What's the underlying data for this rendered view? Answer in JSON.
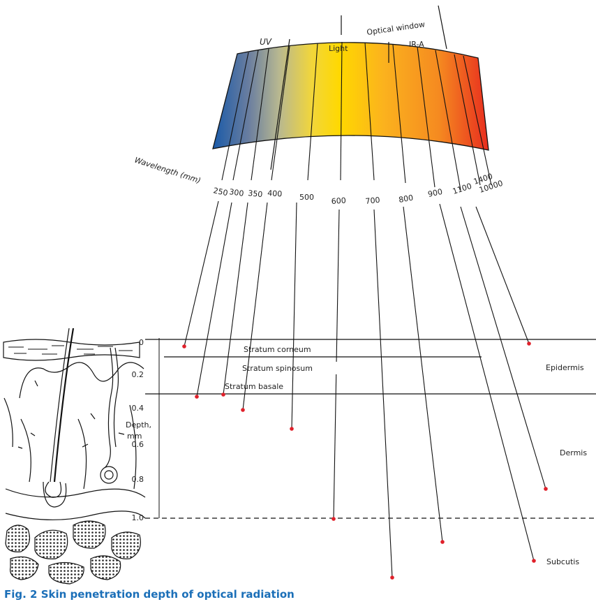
{
  "caption": "Fig. 2 Skin penetration depth of optical radiation",
  "spectrum": {
    "labels": {
      "uv": "UV",
      "light": "Light",
      "optical_window": "Optical window",
      "ir_a": "IR-A"
    },
    "wavelength_axis_label": "Wavelength (mm)",
    "wavelengths": [
      "250",
      "300",
      "350",
      "400",
      "500",
      "600",
      "700",
      "800",
      "900",
      "1100",
      "1400",
      "10000"
    ]
  },
  "depth_axis": {
    "label_line1": "Depth,",
    "label_line2": "mm",
    "ticks": [
      "0",
      "0.2",
      "0.4",
      "0.6",
      "0.8",
      "1.0"
    ]
  },
  "layers": {
    "stratum_corneum": "Stratum corneum",
    "stratum_spinosum": "Stratum spinosum",
    "stratum_basale": "Stratum basale",
    "epidermis": "Epidermis",
    "dermis": "Dermis",
    "subcutis": "Subcutis"
  },
  "colors": {
    "penetration_dot": "#e0202a",
    "caption": "#1b6fb8"
  }
}
